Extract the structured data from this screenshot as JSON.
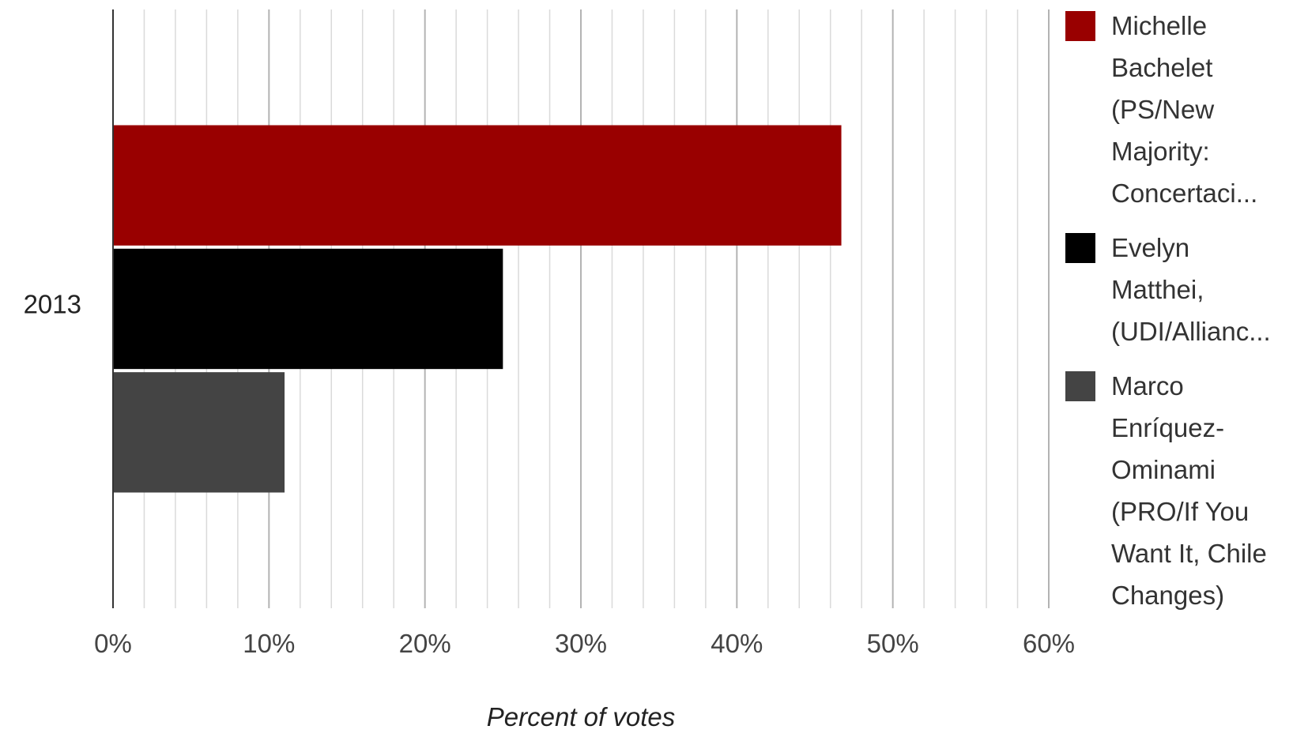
{
  "chart_data": {
    "type": "bar",
    "orientation": "horizontal",
    "categories": [
      "2013"
    ],
    "series": [
      {
        "name": "Michelle Bachelet (PS/New Majority: Concertaci...",
        "values": [
          46.7
        ],
        "color": "#990000"
      },
      {
        "name": "Evelyn Matthei, (UDI/Allianc...",
        "values": [
          25.0
        ],
        "color": "#000000"
      },
      {
        "name": "Marco Enríquez-Ominami (PRO/If You Want It, Chile Changes)",
        "values": [
          11.0
        ],
        "color": "#444444"
      }
    ],
    "xlabel": "Percent of votes",
    "ylabel": "",
    "xlim": [
      0,
      60
    ],
    "x_ticks": [
      "0%",
      "10%",
      "20%",
      "30%",
      "40%",
      "50%",
      "60%"
    ],
    "grid": true,
    "legend_position": "right"
  },
  "legend": {
    "items": [
      {
        "text": "Michelle\nBachelet\n(PS/New\nMajority:\nConcertaci...",
        "color": "#990000"
      },
      {
        "text": "Evelyn\nMatthei,\n(UDI/Allianc...",
        "color": "#000000"
      },
      {
        "text": "Marco\nEnríquez-\nOminami\n(PRO/If You\nWant It, Chile\nChanges)",
        "color": "#444444"
      }
    ]
  }
}
